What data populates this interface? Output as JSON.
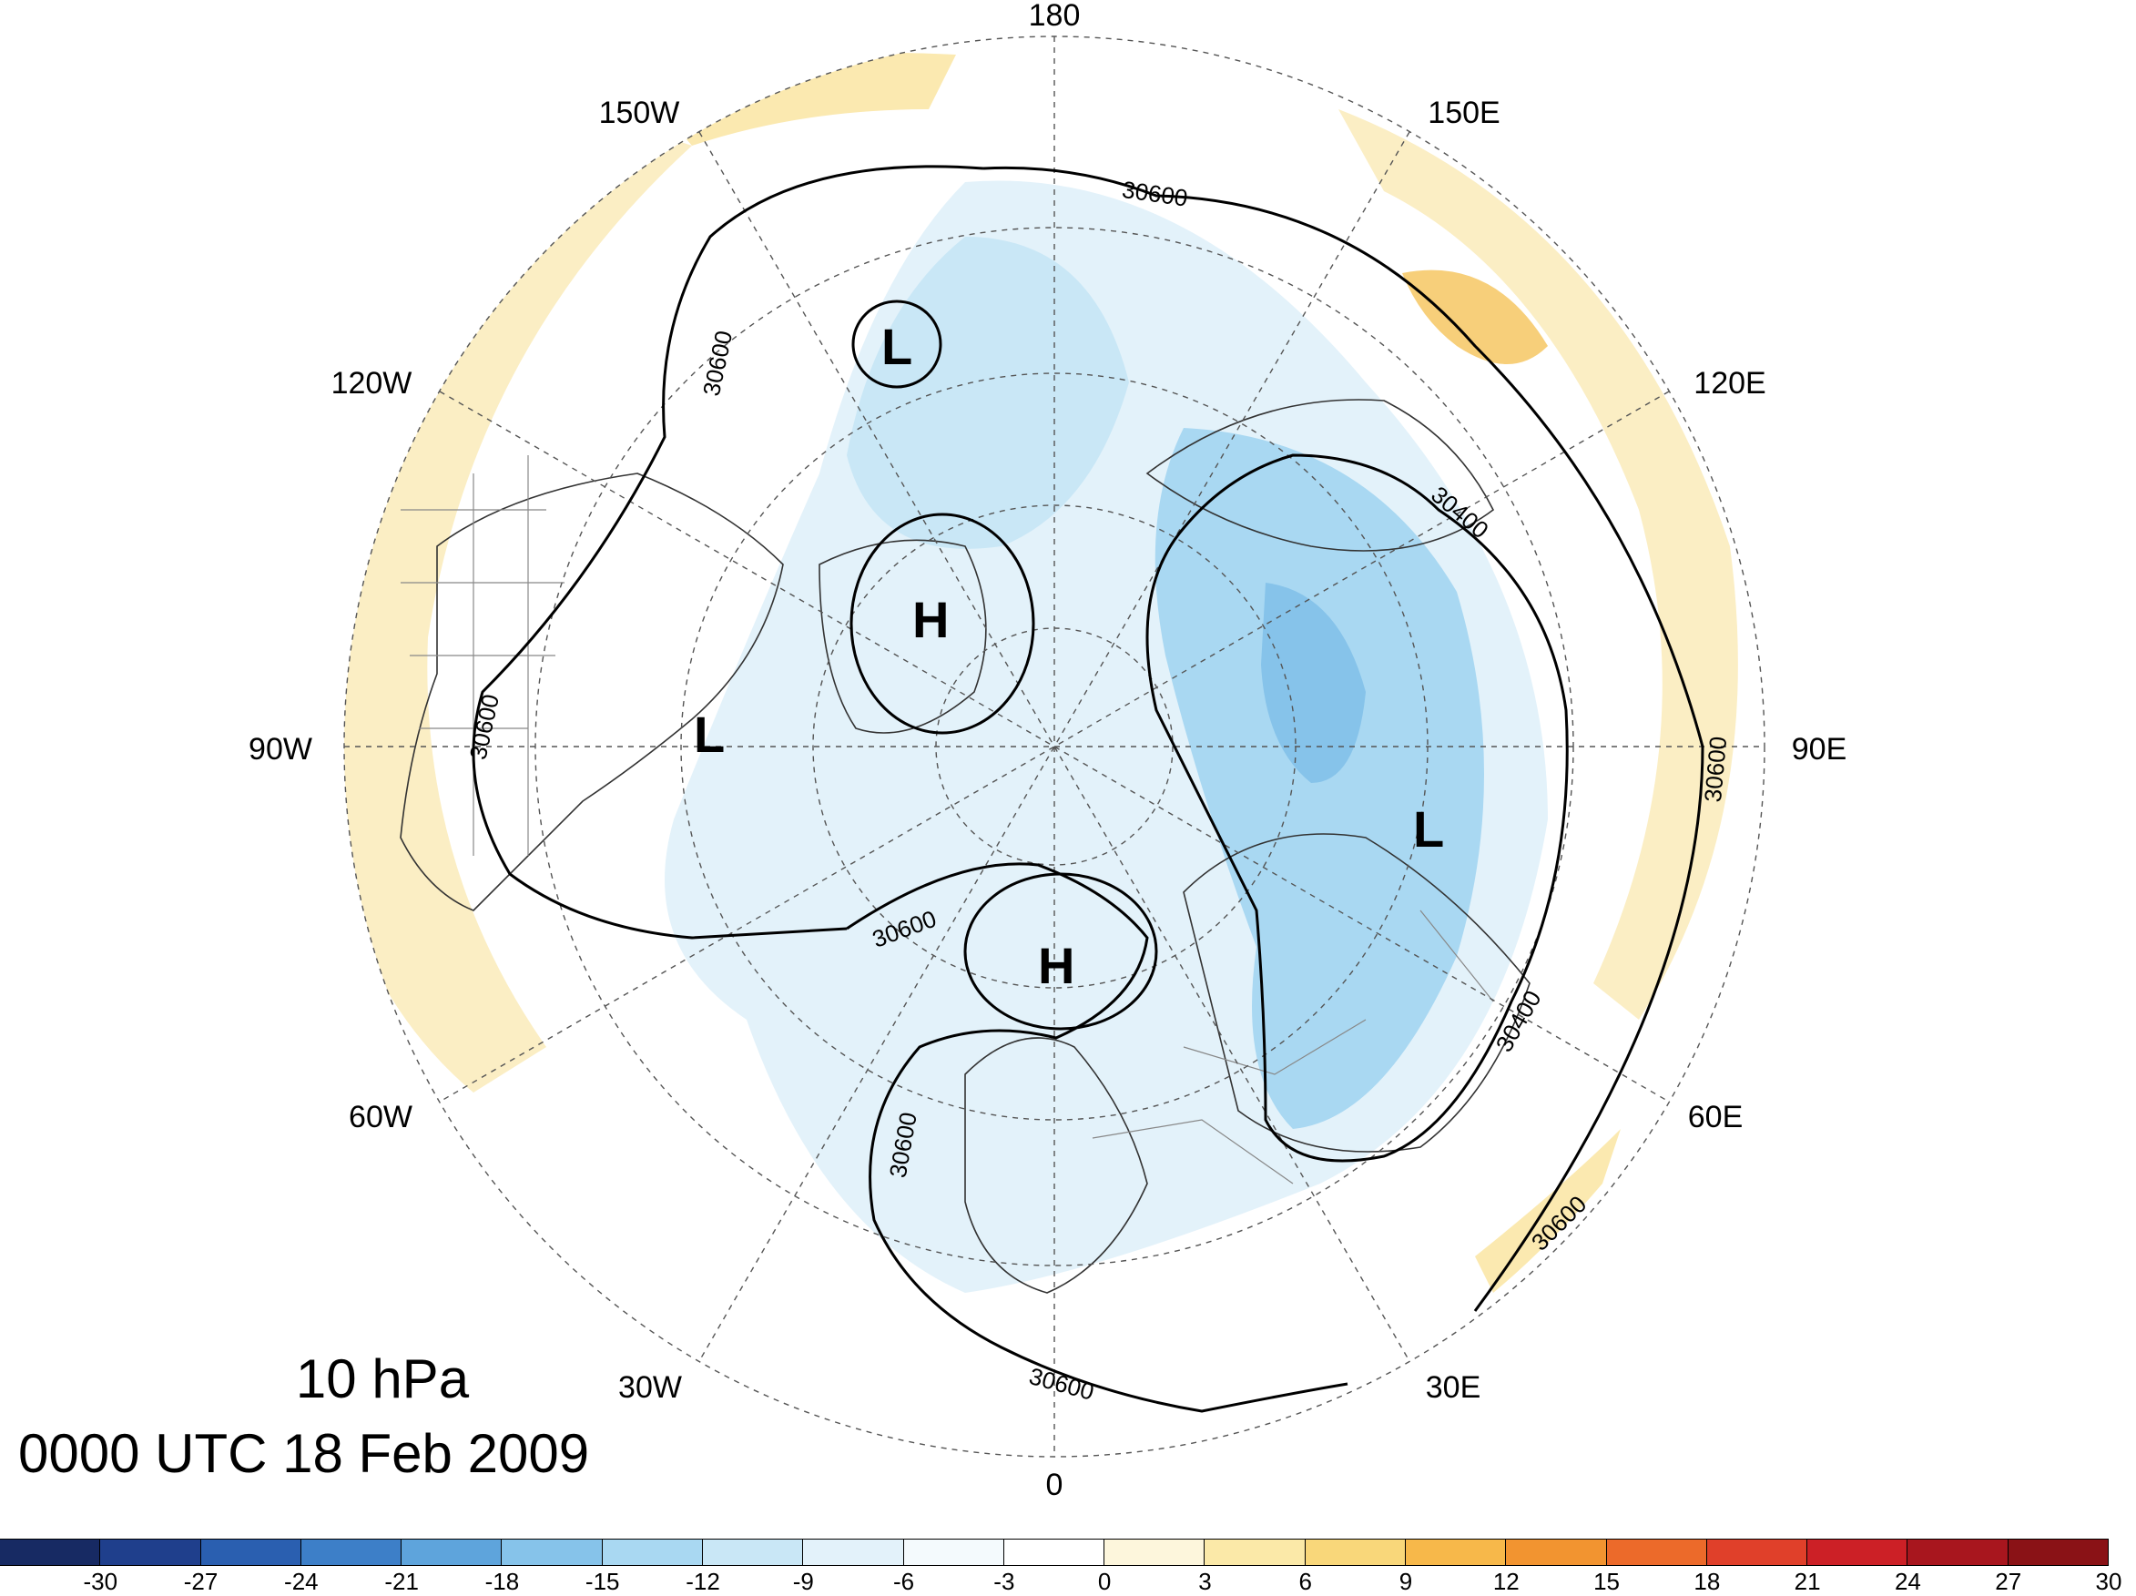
{
  "title": {
    "level": "10 hPa",
    "time": "0000 UTC 18 Feb 2009"
  },
  "longitude_labels": [
    "180",
    "150E",
    "120E",
    "90E",
    "60E",
    "30E",
    "0",
    "30W",
    "60W",
    "90W",
    "120W",
    "150W"
  ],
  "pressure_centers": [
    "L",
    "H",
    "L",
    "L",
    "H"
  ],
  "contour_labels": [
    "30600",
    "30600",
    "30600",
    "30600",
    "30600",
    "30600",
    "30400",
    "30400",
    "30600",
    "30600"
  ],
  "colorbar": {
    "labels": [
      "-30",
      "-27",
      "-24",
      "-21",
      "-18",
      "-15",
      "-12",
      "-9",
      "-6",
      "-3",
      "0",
      "3",
      "6",
      "9",
      "12",
      "15",
      "18",
      "21",
      "24",
      "27",
      "30"
    ],
    "colors": [
      "#172a63",
      "#1f3f8c",
      "#2a5fb0",
      "#3d7fc8",
      "#5ea4dc",
      "#86c3ea",
      "#a9d8f2",
      "#c9e7f6",
      "#e3f2fa",
      "#f4fafd",
      "#ffffff",
      "#fdf6dc",
      "#fbe9a8",
      "#f9d77a",
      "#f7b84a",
      "#f29430",
      "#ec6a2a",
      "#e0402a",
      "#cc2026",
      "#a8161e",
      "#8a1216"
    ]
  },
  "colors": {
    "cold_fill": "#b9dff4",
    "cold_core": "#7cbde6",
    "warm_fill": "#fbe9b0",
    "warm_core": "#f7cf7a"
  }
}
